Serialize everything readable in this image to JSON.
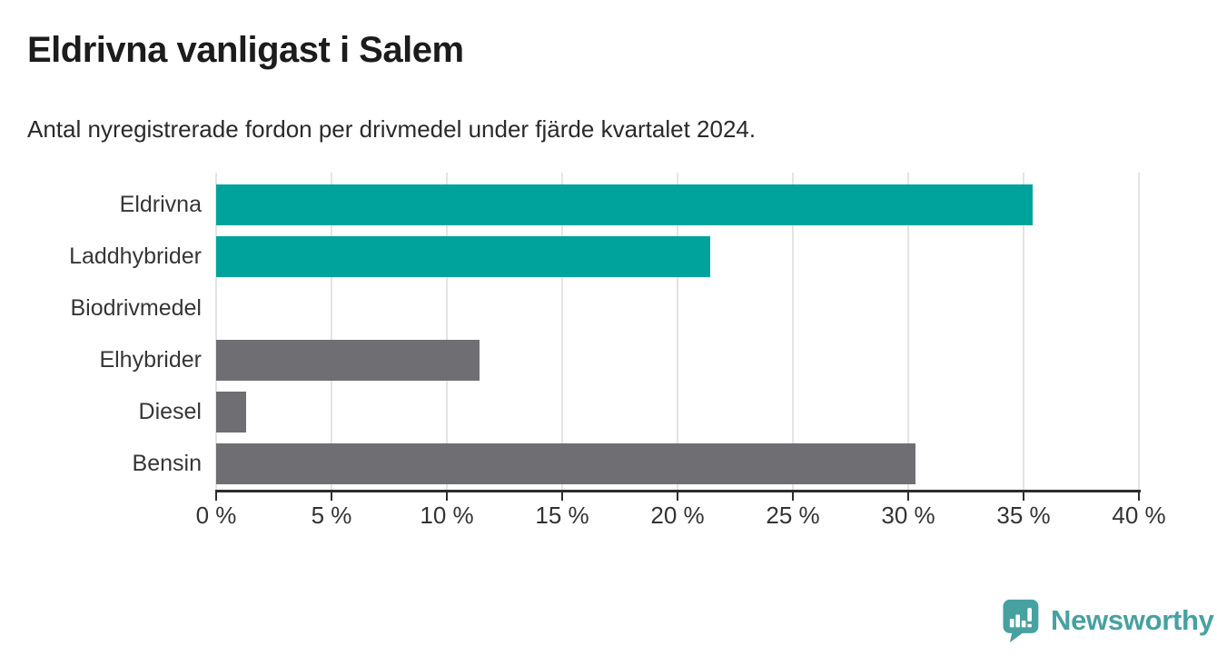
{
  "header": {
    "title": "Eldrivna vanligast i Salem",
    "subtitle": "Antal nyregistrerade fordon per drivmedel under fjärde kvartalet 2024."
  },
  "chart_data": {
    "type": "bar",
    "orientation": "horizontal",
    "title": "Eldrivna vanligast i Salem",
    "subtitle": "Antal nyregistrerade fordon per drivmedel under fjärde kvartalet 2024.",
    "categories": [
      "Eldrivna",
      "Laddhybrider",
      "Biodrivmedel",
      "Elhybrider",
      "Diesel",
      "Bensin"
    ],
    "values": [
      35.4,
      21.4,
      0,
      11.4,
      1.3,
      30.3
    ],
    "unit": "%",
    "colors": [
      "#00a39b",
      "#00a39b",
      "#6e6e73",
      "#6e6e73",
      "#6e6e73",
      "#6e6e73"
    ],
    "highlight_color": "#00a39b",
    "default_color": "#6e6e73",
    "xlabel": "",
    "ylabel": "",
    "xlim": [
      0,
      40
    ],
    "xticks": [
      0,
      5,
      10,
      15,
      20,
      25,
      30,
      35,
      40
    ],
    "xtick_labels": [
      "0 %",
      "5 %",
      "10 %",
      "15 %",
      "20 %",
      "25 %",
      "30 %",
      "35 %",
      "40 %"
    ],
    "grid": true,
    "gridline_color": "#e4e4e4",
    "legend": "none"
  },
  "footer": {
    "brand": "Newsworthy",
    "brand_color": "#47a1a0"
  }
}
